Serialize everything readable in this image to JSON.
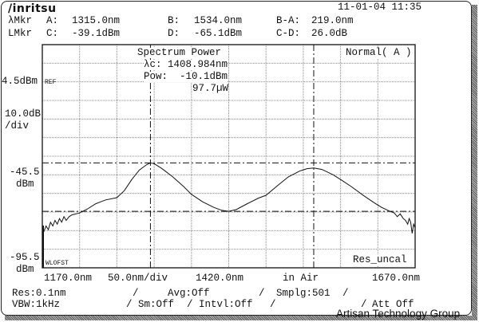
{
  "header": {
    "logo": "/inritsu",
    "datetime": "11-01-04 11:35"
  },
  "markers": {
    "wl_label": "λMkr",
    "a_label": "A:",
    "a_value": "1315.0nm",
    "b_label": "B:",
    "b_value": "1534.0nm",
    "ba_label": "B-A:",
    "ba_value": "219.0nm",
    "lv_label": "LMkr",
    "c_label": "C:",
    "c_value": "-39.1dBm",
    "d_label": "D:",
    "d_value": "-65.1dBm",
    "cd_label": "C-D:",
    "cd_value": "26.0dB"
  },
  "plot_info": {
    "title": "Spectrum Power",
    "lc": "λc: 1408.984nm",
    "pow": "Pow:  -10.1dBm",
    "uw": "97.7µW",
    "mode": "Normal( A )",
    "res_uncal": "Res_uncal",
    "ref_tag": "REF",
    "wlofst_tag": "WLOFST"
  },
  "y_axis": {
    "ref_level": "4.5dBm",
    "scale_1": "10.0dB",
    "scale_2": "/div",
    "mid_1": "-45.5",
    "mid_2": "dBm",
    "bot_1": "-95.5",
    "bot_2": "dBm"
  },
  "x_axis": {
    "start": "1170.0nm",
    "div": "50.0nm/div",
    "center": "1420.0nm",
    "medium": "in Air",
    "stop": "1670.0nm"
  },
  "status": {
    "res": "Res:0.1nm",
    "sep1": "/",
    "avg": "Avg:Off",
    "sep2": "/",
    "smplg": "Smplg:501",
    "sep3": "/",
    "vbw": "VBW:1kHz",
    "sep4": "/",
    "sm": "Sm:Off",
    "sep5": "/",
    "intvl": "Intvl:Off",
    "sep6": "/",
    "sep7": "/",
    "att": "Att Off"
  },
  "watermark": "Artisan Technology Group",
  "chart_data": {
    "type": "line",
    "xlim": [
      1170,
      1670
    ],
    "ylim": [
      -95.5,
      24.5
    ],
    "x_divisions": 10,
    "y_divisions": 12,
    "marker_a": 1315.0,
    "marker_b": 1534.0,
    "marker_c": -39.1,
    "marker_d": -65.1,
    "series": [
      {
        "name": "trace A",
        "x": [
          1170,
          1172,
          1175,
          1178,
          1181,
          1184,
          1187,
          1190,
          1193,
          1196,
          1199,
          1202,
          1206,
          1210,
          1220,
          1230,
          1242,
          1255,
          1270,
          1280,
          1290,
          1300,
          1310,
          1315,
          1320,
          1330,
          1345,
          1360,
          1370,
          1385,
          1400,
          1410,
          1420,
          1430,
          1445,
          1460,
          1470,
          1485,
          1500,
          1515,
          1525,
          1534,
          1545,
          1560,
          1570,
          1585,
          1600,
          1615,
          1625,
          1636,
          1642,
          1646,
          1650,
          1654,
          1657,
          1660,
          1662,
          1664,
          1666,
          1668,
          1670
        ],
        "y": [
          -74,
          -76,
          -73,
          -75,
          -71,
          -73,
          -70,
          -72,
          -69,
          -71,
          -68,
          -70,
          -68,
          -67,
          -66,
          -64,
          -61,
          -59,
          -57.8,
          -54,
          -48,
          -43,
          -40,
          -39.1,
          -39.5,
          -42,
          -46.6,
          -52,
          -56,
          -60,
          -63,
          -64.5,
          -65.1,
          -64.2,
          -61,
          -58,
          -56.5,
          -51.5,
          -46.6,
          -43.5,
          -42.2,
          -41.8,
          -42.6,
          -45.5,
          -48,
          -52,
          -56.4,
          -60.5,
          -63,
          -65.1,
          -66,
          -68,
          -66.5,
          -69,
          -70,
          -72,
          -69,
          -71,
          -77,
          -72,
          -74
        ]
      }
    ]
  }
}
